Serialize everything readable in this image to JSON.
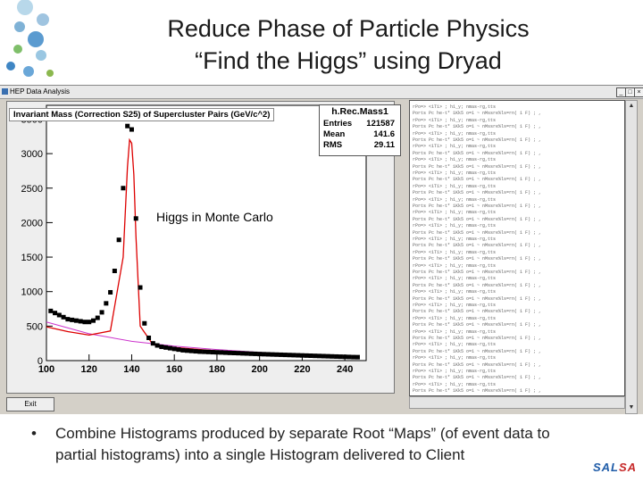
{
  "slide": {
    "title_line1": "Reduce Phase of Particle Physics",
    "title_line2": "“Find the Higgs” using Dryad",
    "bullet_symbol": "•",
    "caption": "Combine Histograms produced by separate Root “Maps” (of event data to partial histograms) into a single Histogram delivered to Client",
    "brand": {
      "part1": "SAL",
      "part2": "SA",
      "color1": "#1f5ca8",
      "color2": "#c62828"
    }
  },
  "window": {
    "title": "HEP Data Analysis",
    "minimize_glyph": "_",
    "maximize_glyph": "□",
    "close_glyph": "×",
    "exit_button_label": "Exit"
  },
  "histogram": {
    "annotation": "Higgs in Monte Carlo",
    "stats": {
      "name": "h.Rec.Mass1",
      "rows": [
        {
          "key": "Entries",
          "value": "121587"
        },
        {
          "key": "Mean",
          "value": "141.6"
        },
        {
          "key": "RMS",
          "value": "29.11"
        }
      ]
    }
  },
  "chart_data": {
    "type": "scatter",
    "title": "Invariant Mass (Correction S25) of Supercluster Pairs (GeV/c^2)",
    "xlabel": "",
    "ylabel": "",
    "xlim": [
      100,
      250
    ],
    "ylim": [
      0,
      3700
    ],
    "x_ticks": [
      100,
      120,
      140,
      160,
      180,
      200,
      220,
      240
    ],
    "y_ticks": [
      0,
      500,
      1000,
      1500,
      2000,
      2500,
      3000,
      3500
    ],
    "grid": false,
    "series": [
      {
        "x": [
          102,
          104,
          106,
          108,
          110,
          112,
          114,
          116,
          118,
          120,
          122,
          124,
          126,
          128,
          130,
          132,
          134,
          136,
          138,
          140,
          142,
          144,
          146,
          148,
          150,
          152,
          154,
          156,
          158,
          160,
          162,
          164,
          166,
          168,
          170,
          172,
          174,
          176,
          178,
          180,
          182,
          184,
          186,
          188,
          190,
          192,
          194,
          196,
          198,
          200,
          202,
          204,
          206,
          208,
          210,
          212,
          214,
          216,
          218,
          220,
          222,
          224,
          226,
          228,
          230,
          232,
          234,
          236,
          238,
          240,
          242,
          244,
          246
        ],
        "values": [
          720,
          690,
          660,
          630,
          600,
          590,
          580,
          570,
          560,
          560,
          580,
          620,
          700,
          830,
          990,
          1300,
          1750,
          2500,
          3400,
          3350,
          2060,
          1060,
          540,
          330,
          250,
          220,
          200,
          190,
          180,
          170,
          160,
          150,
          145,
          140,
          135,
          130,
          128,
          125,
          122,
          120,
          118,
          115,
          112,
          110,
          108,
          105,
          103,
          100,
          98,
          95,
          93,
          91,
          89,
          87,
          85,
          83,
          81,
          79,
          77,
          75,
          73,
          71,
          69,
          67,
          65,
          63,
          61,
          59,
          57,
          55,
          53,
          51,
          50
        ],
        "color": "#000000"
      },
      {
        "x": [
          100,
          110,
          120,
          130,
          136,
          138,
          139,
          140,
          141,
          142,
          144,
          150,
          160,
          180,
          200,
          220,
          240,
          246
        ],
        "values": [
          490,
          420,
          370,
          430,
          1500,
          2800,
          3200,
          3150,
          2700,
          1800,
          500,
          230,
          190,
          140,
          110,
          85,
          60,
          55
        ],
        "color": "#dd0000"
      },
      {
        "x": [
          100,
          120,
          140,
          160,
          180,
          200,
          220,
          240,
          246
        ],
        "values": [
          560,
          390,
          280,
          210,
          160,
          120,
          90,
          65,
          60
        ],
        "color": "#cc33cc"
      }
    ]
  },
  "console": {
    "lines": [
      "rPo=> <1T1> ; h1_y; nmas-rg,tts",
      "Ports Pc he-t* 1Kk5 o=1 ~ nMssre%ls=rn( 1 F) ; ,",
      "rPo=> <1T1> ; h1_y; nmas-rg,tts",
      "Ports Pc he-t* 1Kk5 o=1 ~ nMssre%ls=rn( 1 F) ; ,",
      "rPo=> <1T1> ; h1_y; nmas-rg,tts",
      "Ports Pc he-t* 1Kk5 o=1 ~ nMssre%ls=rn( 1 F) ; ,",
      "rPo=> <1T1> ; h1_y; nmas-rg,tts",
      "Ports Pc he-t* 1Kk5 o=1 ~ nMssre%ls=rn( 1 F) ; ,",
      "rPo=> <1T1> ; h1_y; nmas-rg,tts",
      "Ports Pc he-t* 1Kk5 o=1 ~ nMssre%ls=rn( 1 F) ; ,",
      "rPo=> <1T1> ; h1_y; nmas-rg,tts",
      "Ports Pc he-t* 1Kk5 o=1 ~ nMssre%ls=rn( 1 F) ; ,",
      "rPo=> <1T1> ; h1_y; nmas-rg,tts",
      "Ports Pc he-t* 1Kk5 o=1 ~ nMssre%ls=rn( 1 F) ; ,",
      "rPo=> <1T1> ; h1_y; nmas-rg,tts",
      "Ports Pc he-t* 1Kk5 o=1 ~ nMssre%ls=rn( 1 F) ; ,",
      "rPo=> <1T1> ; h1_y; nmas-rg,tts",
      "Ports Pc he-t* 1Kk5 o=1 ~ nMssre%ls=rn( 1 F) ; ,",
      "rPo=> <1T1> ; h1_y; nmas-rg,tts",
      "Ports Pc he-t* 1Kk5 o=1 ~ nMssre%ls=rn( 1 F) ; ,",
      "rPo=> <1T1> ; h1_y; nmas-rg,tts",
      "Ports Pc he-t* 1Kk5 o=1 ~ nMssre%ls=rn( 1 F) ; ,",
      "rPo=> <1T1> ; h1_y; nmas-rg,tts",
      "Ports Pc he-t* 1Kk5 o=1 ~ nMssre%ls=rn( 1 F) ; ,",
      "rPo=> <1T1> ; h1_y; nmas-rg,tts",
      "Ports Pc he-t* 1Kk5 o=1 ~ nMssre%ls=rn( 1 F) ; ,",
      "rPo=> <1T1> ; h1_y; nmas-rg,tts",
      "Ports Pc he-t* 1Kk5 o=1 ~ nMssre%ls=rn( 1 F) ; ,",
      "rPo=> <1T1> ; h1_y; nmas-rg,tts",
      "Ports Pc he-t* 1Kk5 o=1 ~ nMssre%ls=rn( 1 F) ; ,",
      "rPo=> <1T1> ; h1_y; nmas-rg,tts",
      "Ports Pc he-t* 1Kk5 o=1 ~ nMssre%ls=rn( 1 F) ; ,",
      "rPo=> <1T1> ; h1_y; nmas-rg,tts",
      "Ports Pc he-t* 1Kk5 o=1 ~ nMssre%ls=rn( 1 F) ; ,",
      "rPo=> <1T1> ; h1_y; nmas-rg,tts",
      "Ports Pc he-t* 1Kk5 o=1 ~ nMssre%ls=rn( 1 F) ; ,",
      "rPo=> <1T1> ; h1_y; nmas-rg,tts",
      "Ports Pc he-t* 1Kk5 o=1 ~ nMssre%ls=rn( 1 F) ; ,",
      "rPo=> <1T1> ; h1_y; nmas-rg,tts",
      "Ports Pc he-t* 1Kk5 o=1 ~ nMssre%ls=rn( 1 F) ; ,",
      "rPo=> <1T1> ; h1_y; nmas-rg,tts",
      "Ports Pc he-t* 1Kk5 o=1 ~ nMssre%ls=rn( 1 F) ; ,",
      "rPo=> <1T1> ; h1_y; nmas-rg,tts",
      "Ports Pc he-t* 1Kk5 o=1 ~ nMssre%ls=rn( 1 F) ; ,"
    ]
  }
}
